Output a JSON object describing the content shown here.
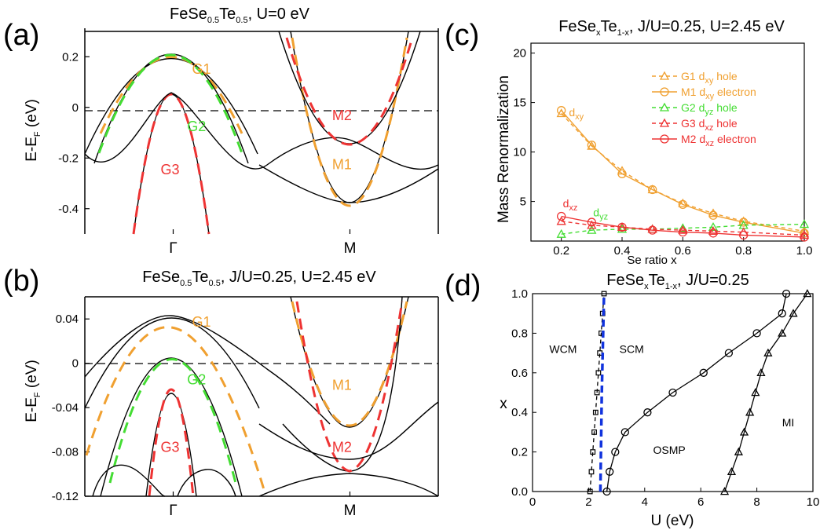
{
  "colors": {
    "orange": "#f0a030",
    "green": "#44dd33",
    "red": "#ee3333",
    "blue": "#1133dd",
    "black": "#000000"
  },
  "chart_data": [
    {
      "panel": "(a)",
      "type": "line",
      "title": {
        "main": "FeSe",
        "s1": "0.5",
        "mid": "Te",
        "s2": "0.5",
        "tail": ", U=0 eV"
      },
      "ylabel": {
        "main": "E-E",
        "sub": "F",
        "tail": " (eV)"
      },
      "xlabel": "",
      "ylim": [
        -0.5,
        0.3
      ],
      "yticks": [
        "0.2",
        "0",
        "-0.2",
        "-0.4"
      ],
      "ytick_values": [
        0.2,
        0,
        -0.2,
        -0.4
      ],
      "xticks": [
        "Γ",
        "M"
      ],
      "xtick_values": [
        0.2,
        0.6
      ],
      "band_labels": [
        {
          "text": "G1",
          "k": 0.264,
          "E": 0.133,
          "color": "#f0a030"
        },
        {
          "text": "G2",
          "k": 0.253,
          "E": -0.094,
          "color": "#44dd33"
        },
        {
          "text": "G3",
          "k": 0.193,
          "E": -0.265,
          "color": "#ee3333"
        },
        {
          "text": "M2",
          "k": 0.582,
          "E": -0.05,
          "color": "#ee3333"
        },
        {
          "text": "M1",
          "k": 0.582,
          "E": -0.244,
          "color": "#f0a030"
        }
      ]
    },
    {
      "panel": "(b)",
      "type": "line",
      "title": {
        "main": "FeSe",
        "s1": "0.5",
        "mid": "Te",
        "s2": "0.5",
        "tail": ", J/U=0.25, U=2.45 eV"
      },
      "ylabel": {
        "main": "E-E",
        "sub": "F",
        "tail": " (eV)"
      },
      "xlabel": "",
      "ylim": [
        -0.12,
        0.06
      ],
      "yticks": [
        "0.04",
        "0",
        "-0.04",
        "-0.08",
        "-0.12"
      ],
      "ytick_values": [
        0.04,
        0,
        -0.04,
        -0.08,
        -0.12
      ],
      "xticks": [
        "Γ",
        "M"
      ],
      "xtick_values": [
        0.2,
        0.6
      ],
      "band_labels": [
        {
          "text": "G1",
          "k": 0.264,
          "E": 0.033,
          "color": "#f0a030"
        },
        {
          "text": "G2",
          "k": 0.253,
          "E": -0.019,
          "color": "#44dd33"
        },
        {
          "text": "G3",
          "k": 0.193,
          "E": -0.08,
          "color": "#ee3333"
        },
        {
          "text": "M1",
          "k": 0.582,
          "E": -0.024,
          "color": "#f0a030"
        },
        {
          "text": "M2",
          "k": 0.582,
          "E": -0.08,
          "color": "#ee3333"
        }
      ]
    },
    {
      "panel": "(c)",
      "type": "line",
      "title": {
        "main": "FeSe",
        "s1": "x",
        "mid": "Te",
        "s2": "1-x",
        "tail": ", J/U=0.25, U=2.45 eV"
      },
      "xlabel": "Se ratio x",
      "ylabel": "Mass Renormalization",
      "xlim": [
        0.1,
        1.0
      ],
      "ylim": [
        1,
        21
      ],
      "xticks": [
        "0.2",
        "0.4",
        "0.6",
        "0.8",
        "1.0"
      ],
      "xtick_values": [
        0.2,
        0.4,
        0.6,
        0.8,
        1.0
      ],
      "yticks": [
        "5",
        "10",
        "15",
        "20"
      ],
      "ytick_values": [
        5,
        10,
        15,
        20
      ],
      "x": [
        0.2,
        0.3,
        0.4,
        0.5,
        0.6,
        0.7,
        0.8,
        1.0
      ],
      "series": [
        {
          "name": {
            "main": "G1 d",
            "sub": "xy",
            "tail": " hole"
          },
          "color": "#f0a030",
          "marker": "triangle",
          "dash": true,
          "values": [
            13.9,
            10.6,
            8.1,
            6.2,
            4.8,
            3.8,
            3.0,
            2.0
          ]
        },
        {
          "name": {
            "main": "M1 d",
            "sub": "xy",
            "tail": " electron"
          },
          "color": "#f0a030",
          "marker": "circle",
          "dash": false,
          "values": [
            14.2,
            10.7,
            7.8,
            6.2,
            4.7,
            3.6,
            2.9,
            1.8
          ]
        },
        {
          "name": {
            "main": "G2 d",
            "sub": "yz",
            "tail": " hole"
          },
          "color": "#44dd33",
          "marker": "triangle",
          "dash": true,
          "values": [
            1.7,
            2.1,
            2.2,
            2.2,
            2.3,
            2.4,
            2.6,
            2.7
          ]
        },
        {
          "name": {
            "main": "G3 d",
            "sub": "xz",
            "tail": " hole"
          },
          "color": "#ee3333",
          "marker": "triangle",
          "dash": true,
          "values": [
            3.0,
            2.6,
            2.4,
            2.2,
            2.1,
            2.0,
            1.9,
            1.6
          ]
        },
        {
          "name": {
            "main": "M2 d",
            "sub": "xz",
            "tail": " electron"
          },
          "color": "#ee3333",
          "marker": "circle",
          "dash": false,
          "values": [
            3.5,
            2.9,
            2.4,
            2.1,
            1.9,
            1.8,
            1.6,
            1.4
          ]
        }
      ],
      "annotations": [
        {
          "main": "d",
          "sub": "xy",
          "x": 0.225,
          "y": 13.6,
          "color": "#f0a030"
        },
        {
          "main": "d",
          "sub": "xz",
          "x": 0.205,
          "y": 4.4,
          "color": "#ee3333"
        },
        {
          "main": "d",
          "sub": "yz",
          "x": 0.305,
          "y": 3.5,
          "color": "#44dd33"
        }
      ],
      "legend_position": "right"
    },
    {
      "panel": "(d)",
      "type": "line",
      "title": {
        "main": "FeSe",
        "s1": "x",
        "mid": "Te",
        "s2": "1-x",
        "tail": ", J/U=0.25"
      },
      "xlabel": "U (eV)",
      "ylabel": "x",
      "xlim": [
        0,
        10
      ],
      "ylim": [
        0,
        1
      ],
      "xticks": [
        "0",
        "2",
        "4",
        "6",
        "8",
        "10"
      ],
      "xtick_values": [
        0,
        2,
        4,
        6,
        8,
        10
      ],
      "yticks": [
        "0.0",
        "0.2",
        "0.4",
        "0.6",
        "0.8",
        "1.0"
      ],
      "ytick_values": [
        0,
        0.2,
        0.4,
        0.6,
        0.8,
        1.0
      ],
      "boundaries": [
        {
          "marker": "square",
          "dash": true,
          "color": "#000000",
          "points": [
            [
              2.05,
              0.0
            ],
            [
              2.1,
              0.1
            ],
            [
              2.15,
              0.2
            ],
            [
              2.2,
              0.3
            ],
            [
              2.25,
              0.4
            ],
            [
              2.3,
              0.5
            ],
            [
              2.35,
              0.6
            ],
            [
              2.4,
              0.7
            ],
            [
              2.45,
              0.8
            ],
            [
              2.5,
              0.9
            ],
            [
              2.55,
              1.0
            ]
          ]
        },
        {
          "marker": "none",
          "dash": true,
          "color": "#1133dd",
          "thick": true,
          "points": [
            [
              2.42,
              0.0
            ],
            [
              2.47,
              0.5
            ],
            [
              2.55,
              1.0
            ]
          ]
        },
        {
          "marker": "circle",
          "dash": false,
          "color": "#000000",
          "points": [
            [
              2.65,
              0.0
            ],
            [
              2.75,
              0.1
            ],
            [
              2.95,
              0.2
            ],
            [
              3.3,
              0.3
            ],
            [
              4.1,
              0.4
            ],
            [
              5.0,
              0.5
            ],
            [
              6.1,
              0.6
            ],
            [
              7.0,
              0.7
            ],
            [
              8.0,
              0.8
            ],
            [
              8.9,
              0.9
            ],
            [
              9.05,
              1.0
            ]
          ]
        },
        {
          "marker": "triangle",
          "dash": false,
          "color": "#000000",
          "points": [
            [
              6.85,
              0.0
            ],
            [
              7.1,
              0.1
            ],
            [
              7.35,
              0.2
            ],
            [
              7.55,
              0.3
            ],
            [
              7.75,
              0.4
            ],
            [
              7.95,
              0.5
            ],
            [
              8.15,
              0.6
            ],
            [
              8.4,
              0.7
            ],
            [
              8.9,
              0.8
            ],
            [
              9.3,
              0.9
            ],
            [
              9.8,
              1.0
            ]
          ]
        }
      ],
      "regions": [
        {
          "label": "WCM",
          "x": 0.6,
          "y": 0.7
        },
        {
          "label": "SCM",
          "x": 3.1,
          "y": 0.7
        },
        {
          "label": "OSMP",
          "x": 4.3,
          "y": 0.19
        },
        {
          "label": "MI",
          "x": 8.9,
          "y": 0.33
        }
      ]
    }
  ]
}
